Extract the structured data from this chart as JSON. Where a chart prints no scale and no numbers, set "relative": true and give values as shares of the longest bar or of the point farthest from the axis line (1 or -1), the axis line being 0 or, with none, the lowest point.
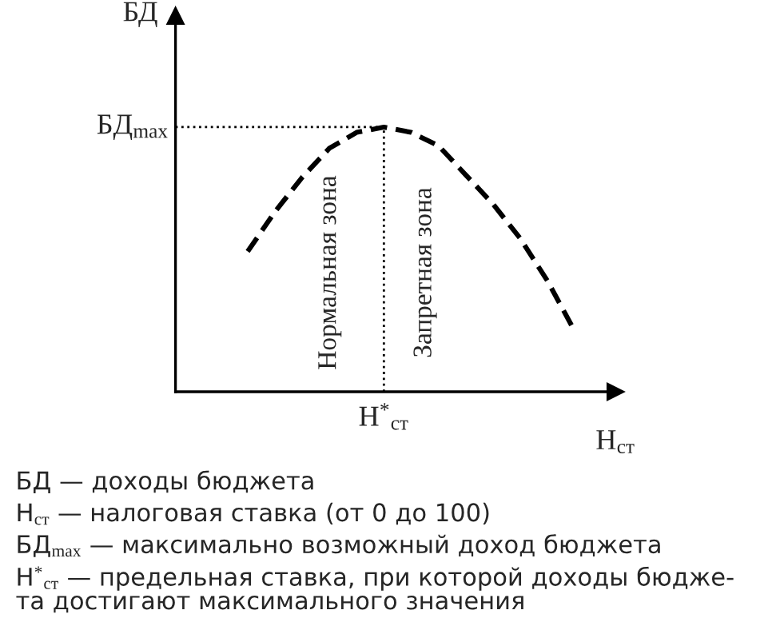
{
  "chart_data": {
    "type": "line",
    "relative": true,
    "categories": [
      null,
      null,
      null,
      null,
      null,
      null,
      null,
      null,
      null,
      null,
      null,
      null,
      null
    ],
    "series": [
      {
        "color": "#000000",
        "values": [
          0.53,
          0.68,
          0.81,
          0.92,
          0.98,
          1,
          0.98,
          0.93,
          0.82,
          0.71,
          0.58,
          0.42,
          0.23
        ]
      }
    ],
    "line_style": "dashed",
    "marker": "none",
    "ylabel": "БД",
    "xlabel": "Н$_{ст}$",
    "ref_lines": [
      {
        "axis": "y",
        "value": 1,
        "label": "БД$_{max}$",
        "line_style": "dotted",
        "color": "#000000"
      }
    ],
    "annotations": [
      "Нормальная зона",
      "Запретная зона",
      "Н$^{*}$$_{ст}$",
      "БД — доходы бюджета",
      "Н$_{ст}$ — налоговая ставка (от 0 до 100)",
      "БД$_{max}$ — максимально возможный доход бюджета",
      "Н$^{*}$$_{ст}$ — предельная ставка, при которой доходы бюдже-\nта достигают максимального значения"
    ]
  }
}
